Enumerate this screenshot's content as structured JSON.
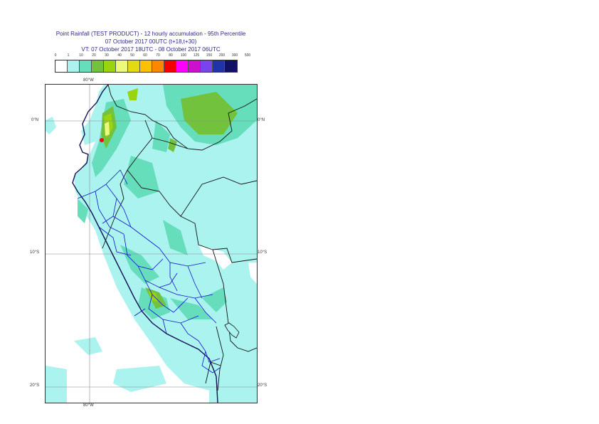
{
  "title": {
    "line1": "Point Rainfall (TEST PRODUCT) - 12 hourly accumulation - 95th Percentile",
    "line2": "07 October 2017 00UTC (t+18,t+30)",
    "line3": "VT: 07 October 2017 18UTC - 08 October 2017 06UTC"
  },
  "legend": {
    "labels": [
      "0",
      "1",
      "10",
      "20",
      "30",
      "40",
      "50",
      "60",
      "70",
      "80",
      "100",
      "125",
      "150",
      "200",
      "300",
      "500"
    ],
    "colors": [
      "#ffffff",
      "#aaf3ef",
      "#66ddbb",
      "#73c23d",
      "#9ad40f",
      "#ecf97a",
      "#e3da13",
      "#fcc005",
      "#fd8800",
      "#f30000",
      "#ff00ff",
      "#cc11cc",
      "#7744ee",
      "#2233aa",
      "#111166"
    ]
  },
  "axes": {
    "lon_top": "80°W",
    "lon_bottom": "80°W",
    "lat_0": "0°N",
    "lat_10": "10°S",
    "lat_20": "20°S"
  }
}
